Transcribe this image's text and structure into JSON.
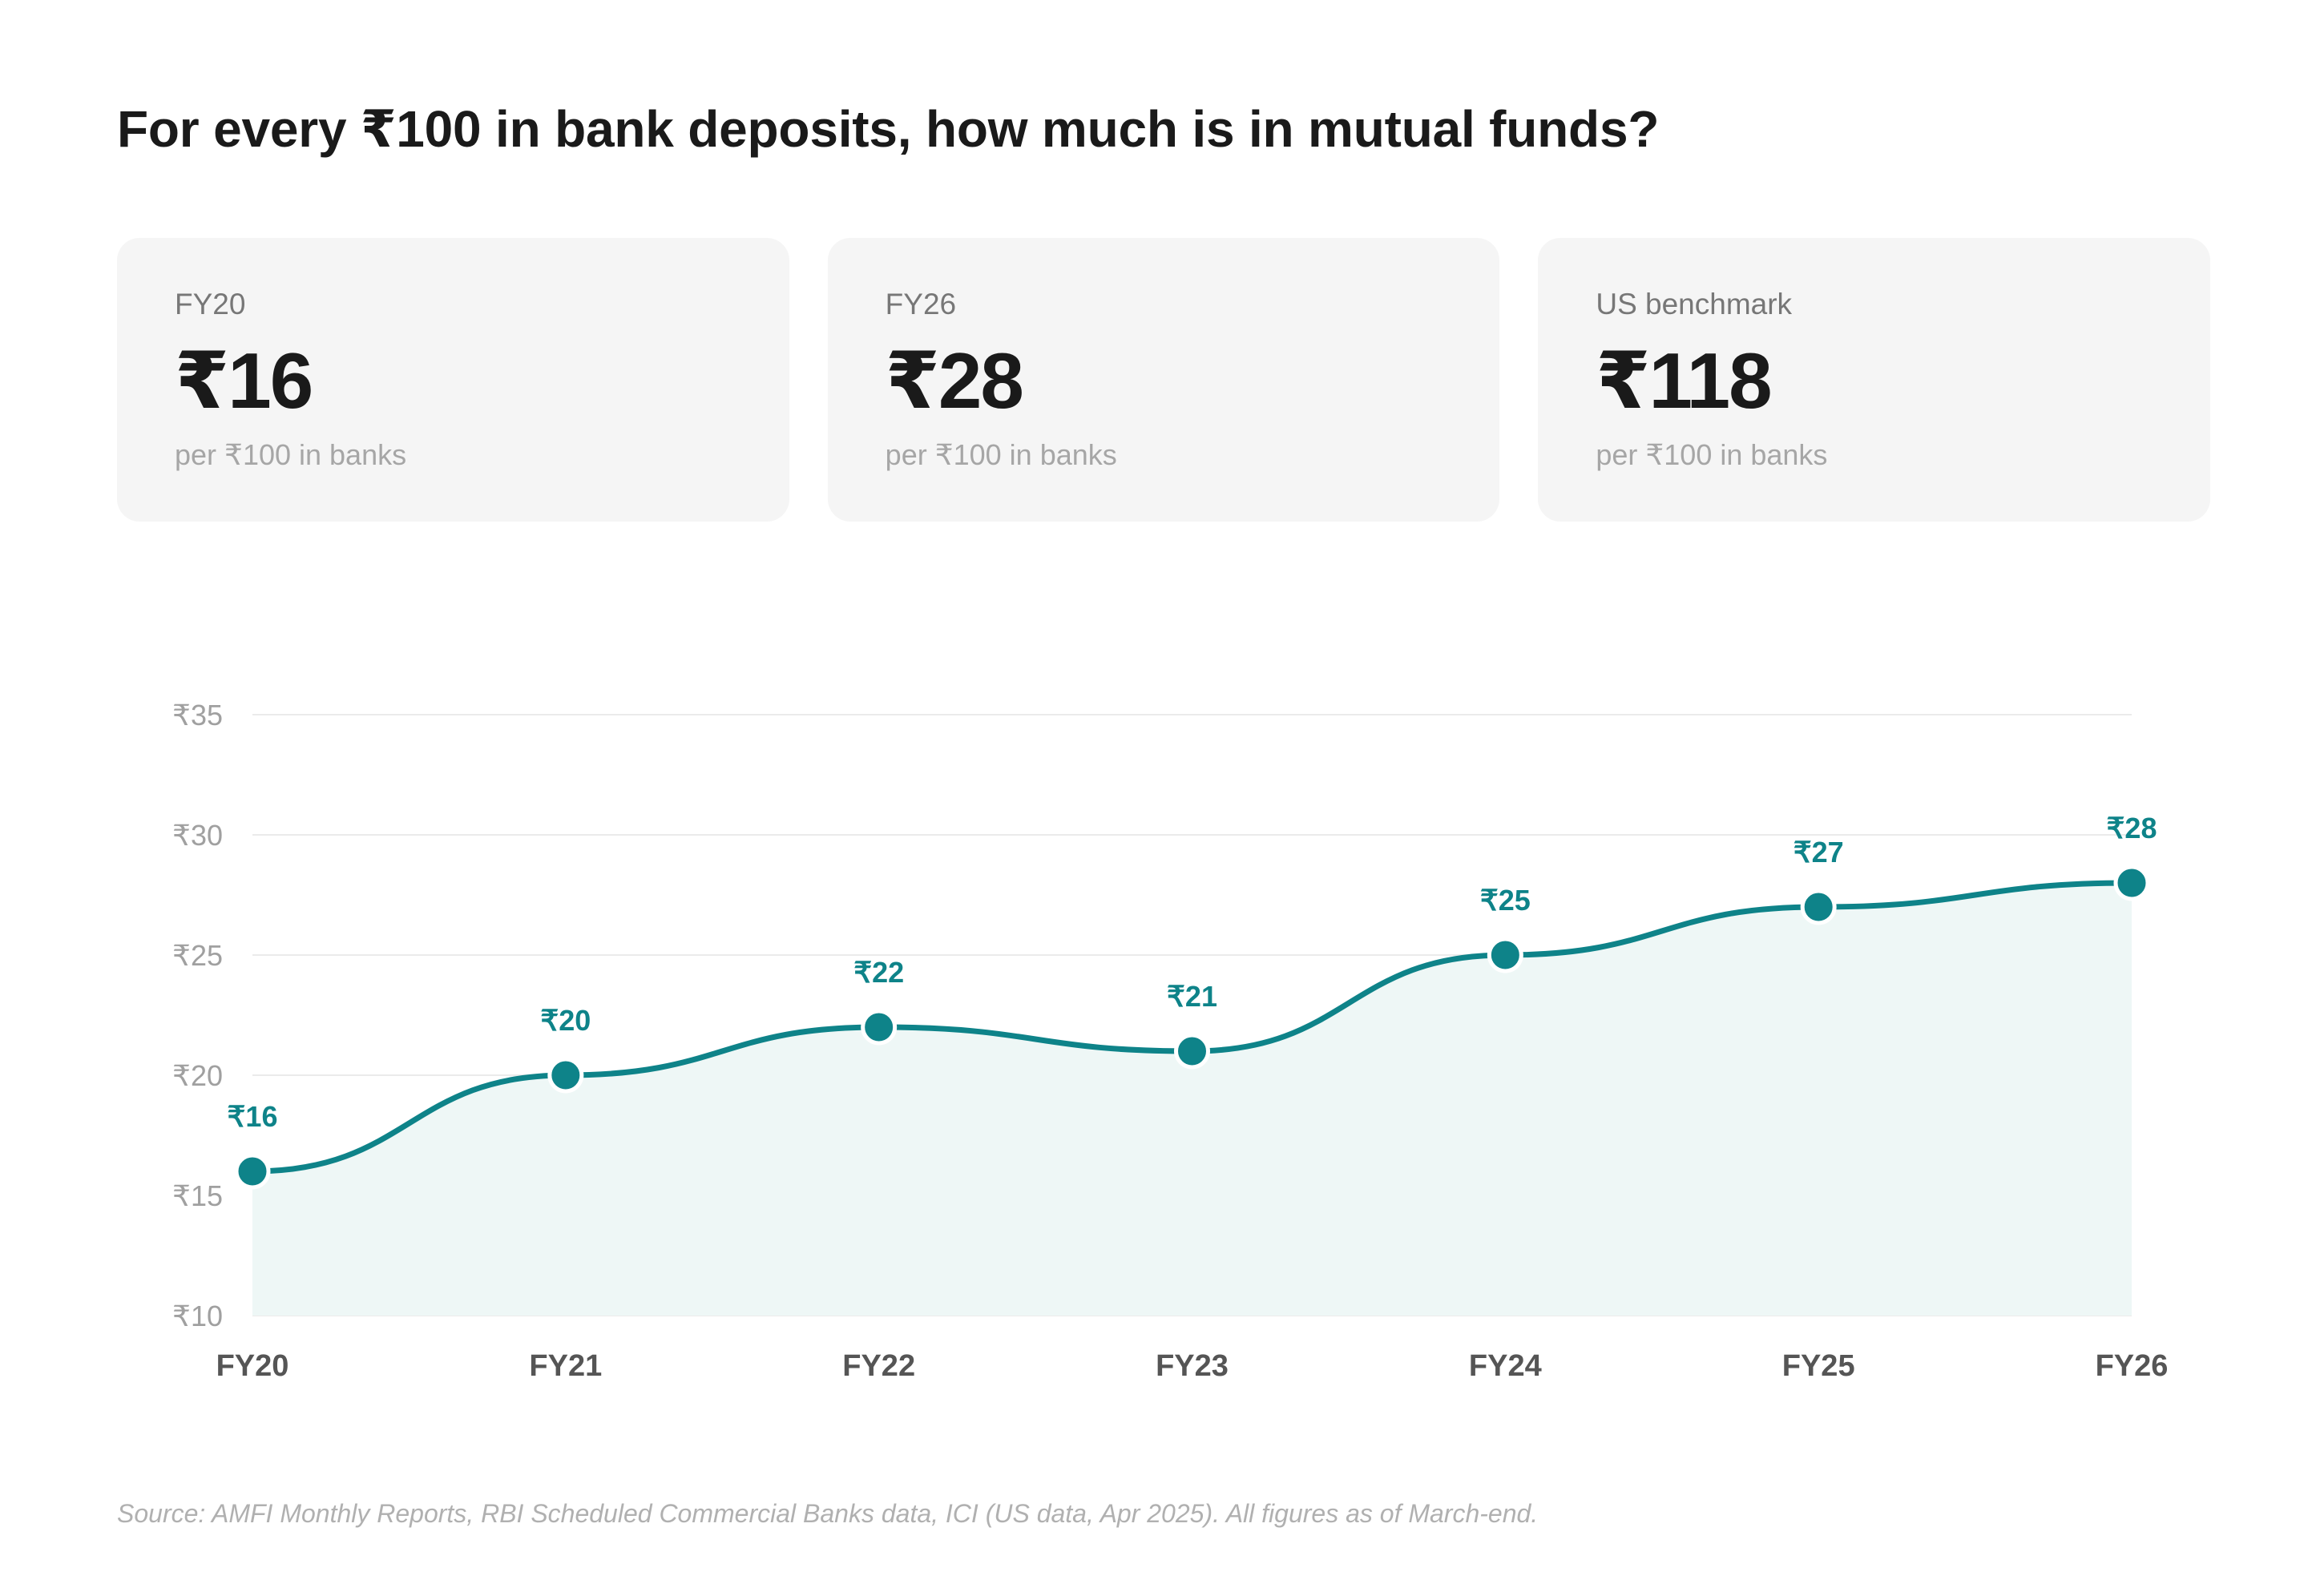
{
  "title": "For every ₹100 in bank deposits, how much is in mutual funds?",
  "cards": [
    {
      "label": "FY20",
      "value": "₹16",
      "sub": "per ₹100 in banks"
    },
    {
      "label": "FY26",
      "value": "₹28",
      "sub": "per ₹100 in banks"
    },
    {
      "label": "US benchmark",
      "value": "₹118",
      "sub": "per ₹100 in banks"
    }
  ],
  "colors": {
    "accent": "#0e8389",
    "area_fill": "#eef7f6",
    "grid": "#ebebeb",
    "tick_text": "#a0a0a0",
    "xtick_text": "#555555"
  },
  "chart_data": {
    "type": "area",
    "categories": [
      "FY20",
      "FY21",
      "FY22",
      "FY23",
      "FY24",
      "FY25",
      "FY26"
    ],
    "series": [
      {
        "values": [
          16,
          20,
          22,
          21,
          25,
          27,
          28
        ]
      }
    ],
    "data_labels": [
      "₹16",
      "₹20",
      "₹22",
      "₹21",
      "₹25",
      "₹27",
      "₹28"
    ],
    "yticks": [
      10,
      15,
      20,
      25,
      30,
      35
    ],
    "ytick_labels": [
      "₹10",
      "₹15",
      "₹20",
      "₹25",
      "₹30",
      "₹35"
    ],
    "ylim": [
      10,
      35
    ],
    "grid": true,
    "xlabel": "",
    "ylabel": ""
  },
  "source": "Source: AMFI Monthly Reports, RBI Scheduled Commercial Banks data, ICI (US data, Apr 2025). All figures as of March-end."
}
